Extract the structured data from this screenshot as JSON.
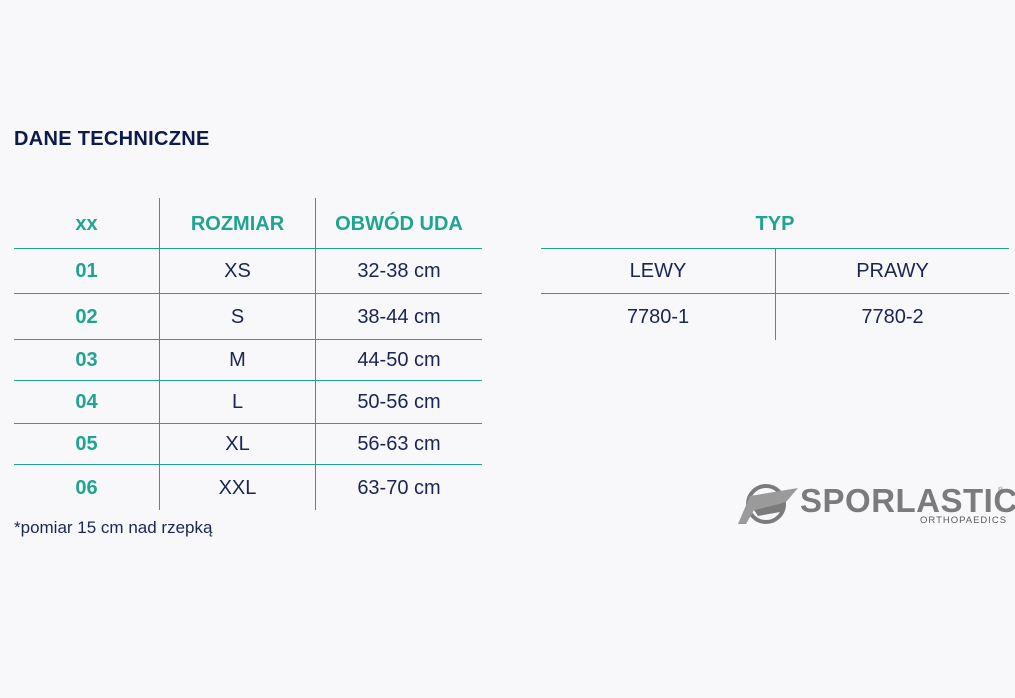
{
  "title": "DANE TECHNICZNE",
  "size_table": {
    "headers": [
      "xx",
      "ROZMIAR",
      "OBWÓD UDA"
    ],
    "rows": [
      {
        "code": "01",
        "size": "XS",
        "range": "32-38 cm"
      },
      {
        "code": "02",
        "size": "S",
        "range": "38-44 cm"
      },
      {
        "code": "03",
        "size": "M",
        "range": "44-50 cm"
      },
      {
        "code": "04",
        "size": "L",
        "range": "50-56 cm"
      },
      {
        "code": "05",
        "size": "XL",
        "range": "56-63 cm"
      },
      {
        "code": "06",
        "size": "XXL",
        "range": "63-70 cm"
      }
    ]
  },
  "type_table": {
    "header": "TYP",
    "columns": [
      "LEWY",
      "PRAWY"
    ],
    "values": [
      "7780-1",
      "7780-2"
    ]
  },
  "footnote": "*pomiar 15 cm nad rzepką",
  "logo": {
    "name": "SPORLASTIC",
    "sub": "ORTHOPAEDICS",
    "reg": "®"
  },
  "colors": {
    "accent": "#1fa58f",
    "text": "#1b2552",
    "background": "#f8f8fb"
  }
}
